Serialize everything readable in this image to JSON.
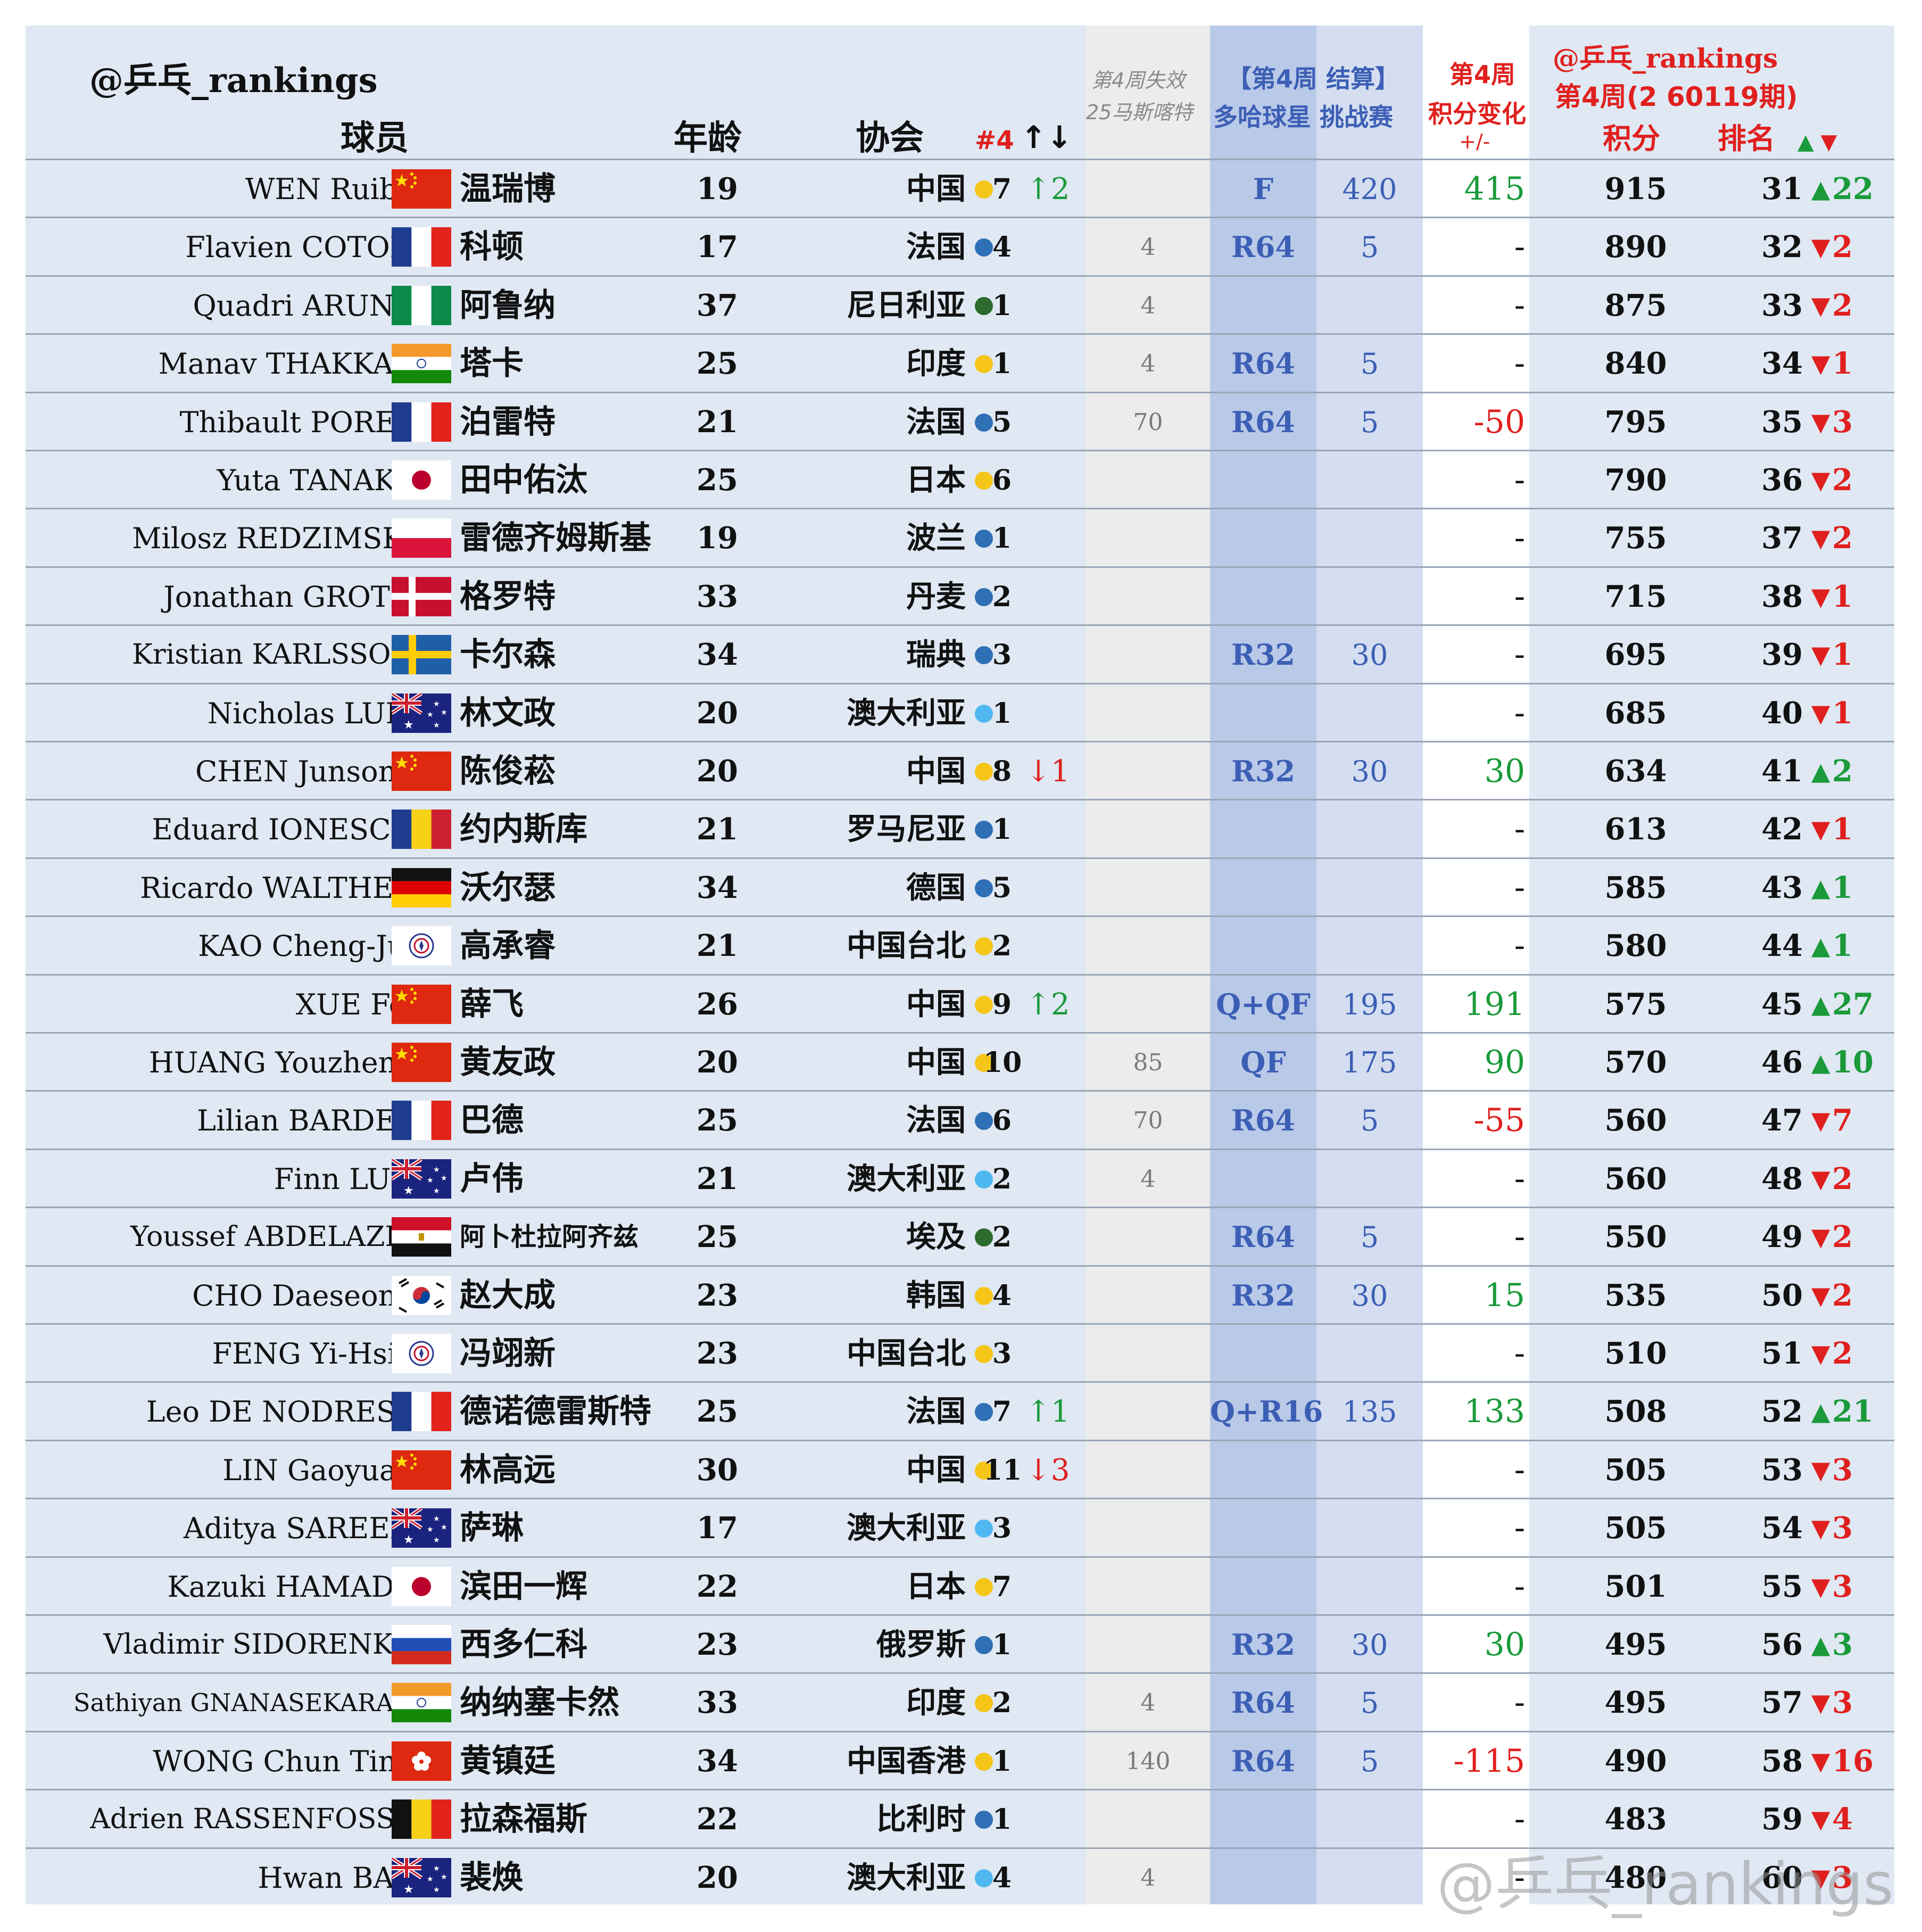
{
  "header": {
    "account": "@乒乓_rankings",
    "col_player": "球员",
    "col_age": "年龄",
    "col_assoc": "协会",
    "col_num4": "#4",
    "col_move": "↑↓",
    "col_expire_1": "第4周失效",
    "col_expire_2": "25马斯喀特",
    "col_event_1": "【第4周 结算】",
    "col_event_2": "多哈球星 挑战赛",
    "col_change_1": "第4周",
    "col_change_2": "积分变化",
    "col_change_3": "+/-",
    "right_account": "@乒乓_rankings",
    "right_period": "第4周(2 60119期)",
    "col_points": "积分",
    "col_rank": "排名",
    "col_rank_arrows": "▲ ▼"
  },
  "colors": {
    "up": "#1a9a3a",
    "down": "#e0201e",
    "accent_red": "#e0201e",
    "event_blue": "#3c5fb5",
    "dot_yellow": "#f5c518",
    "dot_blue": "#2f6fb5",
    "dot_green": "#2d6a2d",
    "dot_lightblue": "#4fb8f0"
  },
  "rows": [
    {
      "en": "WEN Ruibo",
      "flag": "cn",
      "cn": "温瑞博",
      "age": "19",
      "assoc": "中国",
      "dot": "yellow",
      "num4": "7",
      "mv": "↑2",
      "mvdir": "up",
      "expire": "",
      "ev": "F",
      "evp": "420",
      "chg": "415",
      "chgdir": "up",
      "pts": "915",
      "rank": "31",
      "rdir": "up",
      "rdiff": "22"
    },
    {
      "en": "Flavien COTON",
      "flag": "fr",
      "cn": "科顿",
      "age": "17",
      "assoc": "法国",
      "dot": "blue",
      "num4": "4",
      "mv": "",
      "mvdir": "",
      "expire": "4",
      "ev": "R64",
      "evp": "5",
      "chg": "-",
      "chgdir": "none",
      "pts": "890",
      "rank": "32",
      "rdir": "down",
      "rdiff": "2"
    },
    {
      "en": "Quadri ARUNA",
      "flag": "ng",
      "cn": "阿鲁纳",
      "age": "37",
      "assoc": "尼日利亚",
      "dot": "green",
      "num4": "1",
      "mv": "",
      "mvdir": "",
      "expire": "4",
      "ev": "",
      "evp": "",
      "chg": "-",
      "chgdir": "none",
      "pts": "875",
      "rank": "33",
      "rdir": "down",
      "rdiff": "2"
    },
    {
      "en": "Manav THAKKAR",
      "flag": "in",
      "cn": "塔卡",
      "age": "25",
      "assoc": "印度",
      "dot": "yellow",
      "num4": "1",
      "mv": "",
      "mvdir": "",
      "expire": "4",
      "ev": "R64",
      "evp": "5",
      "chg": "-",
      "chgdir": "none",
      "pts": "840",
      "rank": "34",
      "rdir": "down",
      "rdiff": "1"
    },
    {
      "en": "Thibault PORET",
      "flag": "fr",
      "cn": "泊雷特",
      "age": "21",
      "assoc": "法国",
      "dot": "blue",
      "num4": "5",
      "mv": "",
      "mvdir": "",
      "expire": "70",
      "ev": "R64",
      "evp": "5",
      "chg": "-50",
      "chgdir": "down",
      "pts": "795",
      "rank": "35",
      "rdir": "down",
      "rdiff": "3"
    },
    {
      "en": "Yuta TANAKA",
      "flag": "jp",
      "cn": "田中佑汰",
      "age": "25",
      "assoc": "日本",
      "dot": "yellow",
      "num4": "6",
      "mv": "",
      "mvdir": "",
      "expire": "",
      "ev": "",
      "evp": "",
      "chg": "-",
      "chgdir": "none",
      "pts": "790",
      "rank": "36",
      "rdir": "down",
      "rdiff": "2"
    },
    {
      "en": "Milosz REDZIMSKI",
      "flag": "pl",
      "cn": "雷德齐姆斯基",
      "age": "19",
      "assoc": "波兰",
      "dot": "blue",
      "num4": "1",
      "mv": "",
      "mvdir": "",
      "expire": "",
      "ev": "",
      "evp": "",
      "chg": "-",
      "chgdir": "none",
      "pts": "755",
      "rank": "37",
      "rdir": "down",
      "rdiff": "2"
    },
    {
      "en": "Jonathan GROTH",
      "flag": "dk",
      "cn": "格罗特",
      "age": "33",
      "assoc": "丹麦",
      "dot": "blue",
      "num4": "2",
      "mv": "",
      "mvdir": "",
      "expire": "",
      "ev": "",
      "evp": "",
      "chg": "-",
      "chgdir": "none",
      "pts": "715",
      "rank": "38",
      "rdir": "down",
      "rdiff": "1"
    },
    {
      "en": "Kristian KARLSSON",
      "flag": "se",
      "cn": "卡尔森",
      "age": "34",
      "assoc": "瑞典",
      "dot": "blue",
      "num4": "3",
      "mv": "",
      "mvdir": "",
      "expire": "",
      "ev": "R32",
      "evp": "30",
      "chg": "-",
      "chgdir": "none",
      "pts": "695",
      "rank": "39",
      "rdir": "down",
      "rdiff": "1"
    },
    {
      "en": "Nicholas LUM",
      "flag": "au",
      "cn": "林文政",
      "age": "20",
      "assoc": "澳大利亚",
      "dot": "lightblue",
      "num4": "1",
      "mv": "",
      "mvdir": "",
      "expire": "",
      "ev": "",
      "evp": "",
      "chg": "-",
      "chgdir": "none",
      "pts": "685",
      "rank": "40",
      "rdir": "down",
      "rdiff": "1"
    },
    {
      "en": "CHEN Junsong",
      "flag": "cn",
      "cn": "陈俊菘",
      "age": "20",
      "assoc": "中国",
      "dot": "yellow",
      "num4": "8",
      "mv": "↓1",
      "mvdir": "down",
      "expire": "",
      "ev": "R32",
      "evp": "30",
      "chg": "30",
      "chgdir": "up",
      "pts": "634",
      "rank": "41",
      "rdir": "up",
      "rdiff": "2"
    },
    {
      "en": "Eduard IONESCU",
      "flag": "ro",
      "cn": "约内斯库",
      "age": "21",
      "assoc": "罗马尼亚",
      "dot": "blue",
      "num4": "1",
      "mv": "",
      "mvdir": "",
      "expire": "",
      "ev": "",
      "evp": "",
      "chg": "-",
      "chgdir": "none",
      "pts": "613",
      "rank": "42",
      "rdir": "down",
      "rdiff": "1"
    },
    {
      "en": "Ricardo WALTHER",
      "flag": "de",
      "cn": "沃尔瑟",
      "age": "34",
      "assoc": "德国",
      "dot": "blue",
      "num4": "5",
      "mv": "",
      "mvdir": "",
      "expire": "",
      "ev": "",
      "evp": "",
      "chg": "-",
      "chgdir": "none",
      "pts": "585",
      "rank": "43",
      "rdir": "up",
      "rdiff": "1"
    },
    {
      "en": "KAO Cheng-Jui",
      "flag": "tpe",
      "cn": "高承睿",
      "age": "21",
      "assoc": "中国台北",
      "dot": "yellow",
      "num4": "2",
      "mv": "",
      "mvdir": "",
      "expire": "",
      "ev": "",
      "evp": "",
      "chg": "-",
      "chgdir": "none",
      "pts": "580",
      "rank": "44",
      "rdir": "up",
      "rdiff": "1"
    },
    {
      "en": "XUE Fei",
      "flag": "cn",
      "cn": "薛飞",
      "age": "26",
      "assoc": "中国",
      "dot": "yellow",
      "num4": "9",
      "mv": "↑2",
      "mvdir": "up",
      "expire": "",
      "ev": "Q+QF",
      "evp": "195",
      "chg": "191",
      "chgdir": "up",
      "pts": "575",
      "rank": "45",
      "rdir": "up",
      "rdiff": "27"
    },
    {
      "en": "HUANG Youzheng",
      "flag": "cn",
      "cn": "黄友政",
      "age": "20",
      "assoc": "中国",
      "dot": "yellow",
      "num4": "10",
      "mv": "",
      "mvdir": "",
      "expire": "85",
      "ev": "QF",
      "evp": "175",
      "chg": "90",
      "chgdir": "up",
      "pts": "570",
      "rank": "46",
      "rdir": "up",
      "rdiff": "10"
    },
    {
      "en": "Lilian BARDET",
      "flag": "fr",
      "cn": "巴德",
      "age": "25",
      "assoc": "法国",
      "dot": "blue",
      "num4": "6",
      "mv": "",
      "mvdir": "",
      "expire": "70",
      "ev": "R64",
      "evp": "5",
      "chg": "-55",
      "chgdir": "down",
      "pts": "560",
      "rank": "47",
      "rdir": "down",
      "rdiff": "7"
    },
    {
      "en": "Finn LUU",
      "flag": "au",
      "cn": "卢伟",
      "age": "21",
      "assoc": "澳大利亚",
      "dot": "lightblue",
      "num4": "2",
      "mv": "",
      "mvdir": "",
      "expire": "4",
      "ev": "",
      "evp": "",
      "chg": "-",
      "chgdir": "none",
      "pts": "560",
      "rank": "48",
      "rdir": "down",
      "rdiff": "2"
    },
    {
      "en": "Youssef ABDELAZIZ",
      "flag": "eg",
      "cn": "阿卜杜拉阿齐兹",
      "cnsmall": true,
      "age": "25",
      "assoc": "埃及",
      "dot": "green",
      "num4": "2",
      "mv": "",
      "mvdir": "",
      "expire": "",
      "ev": "R64",
      "evp": "5",
      "chg": "-",
      "chgdir": "none",
      "pts": "550",
      "rank": "49",
      "rdir": "down",
      "rdiff": "2"
    },
    {
      "en": "CHO Daeseong",
      "flag": "kr",
      "cn": "赵大成",
      "age": "23",
      "assoc": "韩国",
      "dot": "yellow",
      "num4": "4",
      "mv": "",
      "mvdir": "",
      "expire": "",
      "ev": "R32",
      "evp": "30",
      "chg": "15",
      "chgdir": "up",
      "pts": "535",
      "rank": "50",
      "rdir": "down",
      "rdiff": "2"
    },
    {
      "en": "FENG Yi-Hsin",
      "flag": "tpe",
      "cn": "冯翊新",
      "age": "23",
      "assoc": "中国台北",
      "dot": "yellow",
      "num4": "3",
      "mv": "",
      "mvdir": "",
      "expire": "",
      "ev": "",
      "evp": "",
      "chg": "-",
      "chgdir": "none",
      "pts": "510",
      "rank": "51",
      "rdir": "down",
      "rdiff": "2"
    },
    {
      "en": "Leo DE NODREST",
      "flag": "fr",
      "cn": "德诺德雷斯特",
      "age": "25",
      "assoc": "法国",
      "dot": "blue",
      "num4": "7",
      "mv": "↑1",
      "mvdir": "up",
      "expire": "",
      "ev": "Q+R16",
      "evp": "135",
      "chg": "133",
      "chgdir": "up",
      "pts": "508",
      "rank": "52",
      "rdir": "up",
      "rdiff": "21"
    },
    {
      "en": "LIN Gaoyuan",
      "flag": "cn",
      "cn": "林高远",
      "age": "30",
      "assoc": "中国",
      "dot": "yellow",
      "num4": "11",
      "mv": "↓3",
      "mvdir": "down",
      "expire": "",
      "ev": "",
      "evp": "",
      "chg": "-",
      "chgdir": "none",
      "pts": "505",
      "rank": "53",
      "rdir": "down",
      "rdiff": "3"
    },
    {
      "en": "Aditya SAREEN",
      "flag": "au",
      "cn": "萨琳",
      "age": "17",
      "assoc": "澳大利亚",
      "dot": "lightblue",
      "num4": "3",
      "mv": "",
      "mvdir": "",
      "expire": "",
      "ev": "",
      "evp": "",
      "chg": "-",
      "chgdir": "none",
      "pts": "505",
      "rank": "54",
      "rdir": "down",
      "rdiff": "3"
    },
    {
      "en": "Kazuki HAMADA",
      "flag": "jp",
      "cn": "滨田一辉",
      "age": "22",
      "assoc": "日本",
      "dot": "yellow",
      "num4": "7",
      "mv": "",
      "mvdir": "",
      "expire": "",
      "ev": "",
      "evp": "",
      "chg": "-",
      "chgdir": "none",
      "pts": "501",
      "rank": "55",
      "rdir": "down",
      "rdiff": "3"
    },
    {
      "en": "Vladimir SIDORENKO",
      "flag": "ru",
      "cn": "西多仁科",
      "age": "23",
      "assoc": "俄罗斯",
      "dot": "blue",
      "num4": "1",
      "mv": "",
      "mvdir": "",
      "expire": "",
      "ev": "R32",
      "evp": "30",
      "chg": "30",
      "chgdir": "up",
      "pts": "495",
      "rank": "56",
      "rdir": "up",
      "rdiff": "3"
    },
    {
      "en": "Sathiyan GNANASEKARAN",
      "flag": "in",
      "cn": "纳纳塞卡然",
      "age": "33",
      "assoc": "印度",
      "dot": "yellow",
      "num4": "2",
      "mv": "",
      "mvdir": "",
      "expire": "4",
      "ev": "R64",
      "evp": "5",
      "chg": "-",
      "chgdir": "none",
      "pts": "495",
      "rank": "57",
      "rdir": "down",
      "rdiff": "3"
    },
    {
      "en": "WONG Chun Ting",
      "flag": "hk",
      "cn": "黄镇廷",
      "age": "34",
      "assoc": "中国香港",
      "dot": "yellow",
      "num4": "1",
      "mv": "",
      "mvdir": "",
      "expire": "140",
      "ev": "R64",
      "evp": "5",
      "chg": "-115",
      "chgdir": "down",
      "pts": "490",
      "rank": "58",
      "rdir": "down",
      "rdiff": "16"
    },
    {
      "en": "Adrien RASSENFOSSE",
      "flag": "be",
      "cn": "拉森福斯",
      "age": "22",
      "assoc": "比利时",
      "dot": "blue",
      "num4": "1",
      "mv": "",
      "mvdir": "",
      "expire": "",
      "ev": "",
      "evp": "",
      "chg": "-",
      "chgdir": "none",
      "pts": "483",
      "rank": "59",
      "rdir": "down",
      "rdiff": "4"
    },
    {
      "en": "Hwan BAE",
      "flag": "au",
      "cn": "裴焕",
      "age": "20",
      "assoc": "澳大利亚",
      "dot": "lightblue",
      "num4": "4",
      "mv": "",
      "mvdir": "",
      "expire": "4",
      "ev": "",
      "evp": "",
      "chg": "-",
      "chgdir": "none",
      "pts": "480",
      "rank": "60",
      "rdir": "down",
      "rdiff": "3"
    }
  ],
  "watermark": "@乒乓_rankings"
}
